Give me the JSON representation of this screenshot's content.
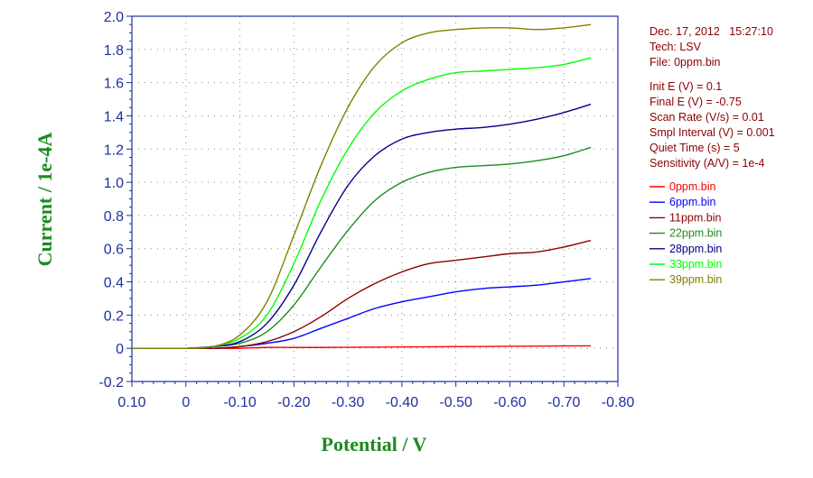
{
  "chart_data": {
    "type": "line",
    "xlabel": "Potential / V",
    "ylabel": "Current / 1e-4A",
    "x_reversed": true,
    "xlim": [
      0.1,
      -0.8
    ],
    "ylim": [
      -0.2,
      2.0
    ],
    "x_ticks": [
      0.1,
      0,
      -0.1,
      -0.2,
      -0.3,
      -0.4,
      -0.5,
      -0.6,
      -0.7,
      -0.8
    ],
    "x_tick_labels": [
      "0.10",
      "0",
      "-0.10",
      "-0.20",
      "-0.30",
      "-0.40",
      "-0.50",
      "-0.60",
      "-0.70",
      "-0.80"
    ],
    "y_ticks": [
      -0.2,
      0,
      0.2,
      0.4,
      0.6,
      0.8,
      1.0,
      1.2,
      1.4,
      1.6,
      1.8,
      2.0
    ],
    "y_tick_labels": [
      "-0.2",
      "0",
      "0.2",
      "0.4",
      "0.6",
      "0.8",
      "1.0",
      "1.2",
      "1.4",
      "1.6",
      "1.8",
      "2.0"
    ],
    "grid": true,
    "legend_position": "right",
    "x": [
      0.1,
      0.05,
      0,
      -0.05,
      -0.1,
      -0.15,
      -0.2,
      -0.25,
      -0.3,
      -0.35,
      -0.4,
      -0.45,
      -0.5,
      -0.55,
      -0.6,
      -0.65,
      -0.7,
      -0.75
    ],
    "series": [
      {
        "name": "0ppm.bin",
        "color": "#ff0000",
        "values": [
          0.0,
          0.0,
          0.0,
          0.0,
          0.0,
          0.005,
          0.005,
          0.005,
          0.006,
          0.007,
          0.008,
          0.009,
          0.01,
          0.011,
          0.012,
          0.013,
          0.014,
          0.015
        ]
      },
      {
        "name": "6ppm.bin",
        "color": "#0000ff",
        "values": [
          0.0,
          0.0,
          0.0,
          0.0,
          0.01,
          0.03,
          0.06,
          0.12,
          0.18,
          0.24,
          0.28,
          0.31,
          0.34,
          0.36,
          0.37,
          0.38,
          0.4,
          0.42
        ]
      },
      {
        "name": "11ppm.bin",
        "color": "#8b0000",
        "values": [
          0.0,
          0.0,
          0.0,
          0.0,
          0.01,
          0.04,
          0.1,
          0.19,
          0.3,
          0.39,
          0.46,
          0.51,
          0.53,
          0.55,
          0.57,
          0.58,
          0.61,
          0.65
        ]
      },
      {
        "name": "22ppm.bin",
        "color": "#1e8c1e",
        "values": [
          0.0,
          0.0,
          0.0,
          0.01,
          0.03,
          0.1,
          0.26,
          0.49,
          0.71,
          0.89,
          1.0,
          1.06,
          1.09,
          1.1,
          1.11,
          1.13,
          1.16,
          1.21
        ]
      },
      {
        "name": "28ppm.bin",
        "color": "#00008b",
        "values": [
          0.0,
          0.0,
          0.0,
          0.01,
          0.04,
          0.15,
          0.38,
          0.7,
          0.98,
          1.16,
          1.26,
          1.3,
          1.32,
          1.33,
          1.35,
          1.38,
          1.42,
          1.47
        ]
      },
      {
        "name": "33ppm.bin",
        "color": "#00ff00",
        "values": [
          0.0,
          0.0,
          0.0,
          0.01,
          0.06,
          0.2,
          0.51,
          0.89,
          1.2,
          1.42,
          1.55,
          1.62,
          1.66,
          1.67,
          1.68,
          1.69,
          1.71,
          1.75
        ]
      },
      {
        "name": "39ppm.bin",
        "color": "#808000",
        "values": [
          0.0,
          0.0,
          0.0,
          0.01,
          0.08,
          0.28,
          0.68,
          1.1,
          1.45,
          1.7,
          1.84,
          1.9,
          1.92,
          1.93,
          1.93,
          1.92,
          1.93,
          1.95
        ]
      }
    ]
  },
  "info": {
    "date_line": "Dec. 17, 2012   15:27:10",
    "tech_line": "Tech: LSV",
    "file_line": "File: 0ppm.bin",
    "params": [
      "Init E (V) = 0.1",
      "Final E (V) = -0.75",
      "Scan Rate (V/s) = 0.01",
      "Smpl Interval (V) = 0.001",
      "Quiet Time (s) = 5",
      "Sensitivity (A/V) = 1e-4"
    ]
  }
}
